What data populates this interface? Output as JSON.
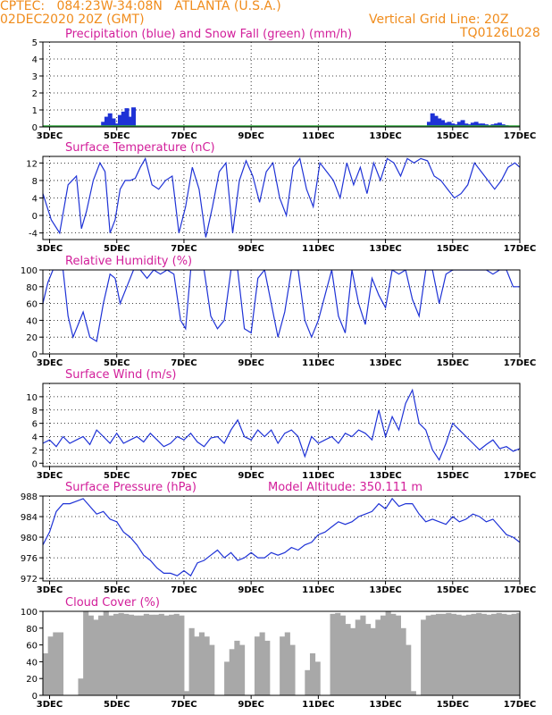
{
  "header": {
    "left_line1": "CPTEC:   084:23W-34:08N   ATLANTA (U.S.A.)",
    "left_line2": "02DEC2020 20Z (GMT)",
    "right_line1": "Vertical Grid Line: 20Z",
    "right_line2": "TQ0126L028"
  },
  "colors": {
    "header": "#f08c1c",
    "title": "#d21e9a",
    "line": "#1e32d6",
    "precip": "#1e32d6",
    "snow": "#2ea83a",
    "cloud": "#a8a8a8"
  },
  "x_axis": {
    "range": [
      2.8,
      17.0
    ],
    "ticks": [
      3,
      5,
      7,
      9,
      11,
      13,
      15,
      17
    ],
    "tick_labels": [
      "3DEC",
      "5DEC",
      "7DEC",
      "9DEC",
      "11DEC",
      "13DEC",
      "15DEC",
      "17DEC"
    ]
  },
  "chart_data": [
    {
      "type": "bar",
      "title": "Precipitation (blue) and Snow Fall (green) (mm/h)",
      "ylim": [
        0,
        5
      ],
      "yticks": [
        0,
        1,
        2,
        3,
        4,
        5
      ],
      "grid": true,
      "series": [
        {
          "name": "Precipitation",
          "type": "bar",
          "x": [
            4.6,
            4.7,
            4.8,
            4.9,
            5.0,
            5.1,
            5.2,
            5.3,
            5.4,
            5.5,
            14.3,
            14.4,
            14.5,
            14.6,
            14.7,
            14.8,
            14.9,
            15.0,
            15.1,
            15.2,
            15.3,
            15.4,
            15.5,
            15.6,
            15.7,
            15.8,
            15.9,
            16.0,
            16.1,
            16.2,
            16.3,
            16.4,
            16.5,
            16.6,
            16.7,
            16.8,
            16.9
          ],
          "y": [
            0.3,
            0.6,
            0.8,
            0.5,
            0.2,
            0.7,
            0.9,
            1.1,
            0.6,
            1.15,
            0.3,
            0.8,
            0.65,
            0.5,
            0.4,
            0.25,
            0.3,
            0.2,
            0.15,
            0.3,
            0.4,
            0.2,
            0.15,
            0.25,
            0.3,
            0.2,
            0.2,
            0.15,
            0.1,
            0.15,
            0.2,
            0.25,
            0.15,
            0.1,
            0.05,
            0.05,
            0.05
          ]
        },
        {
          "name": "Snow Fall",
          "type": "line",
          "x": [
            2.8,
            17.0
          ],
          "y": [
            0,
            0
          ]
        }
      ]
    },
    {
      "type": "line",
      "title": "Surface Temperature (nC)",
      "ylim": [
        -5.5,
        13.5
      ],
      "yticks": [
        -4,
        0,
        4,
        8,
        12
      ],
      "grid": true,
      "x": [
        2.8,
        3.05,
        3.3,
        3.55,
        3.8,
        3.95,
        4.1,
        4.3,
        4.5,
        4.65,
        4.8,
        4.95,
        5.1,
        5.25,
        5.4,
        5.55,
        5.7,
        5.85,
        6.05,
        6.25,
        6.45,
        6.65,
        6.85,
        7.05,
        7.25,
        7.45,
        7.65,
        7.85,
        8.05,
        8.25,
        8.45,
        8.65,
        8.85,
        9.05,
        9.25,
        9.45,
        9.65,
        9.85,
        10.05,
        10.25,
        10.45,
        10.65,
        10.85,
        11.05,
        11.25,
        11.45,
        11.65,
        11.85,
        12.05,
        12.25,
        12.45,
        12.65,
        12.85,
        13.05,
        13.25,
        13.45,
        13.65,
        13.85,
        14.05,
        14.25,
        14.45,
        14.65,
        14.85,
        15.05,
        15.25,
        15.45,
        15.65,
        15.85,
        16.05,
        16.25,
        16.45,
        16.65,
        16.85,
        17.0
      ],
      "y": [
        5,
        -1,
        -4,
        7,
        9,
        -3,
        1,
        8,
        12,
        10,
        -4,
        -1,
        6,
        8,
        8,
        8.5,
        11,
        13,
        7,
        6,
        8,
        9,
        -4,
        2,
        11,
        6,
        -5,
        2,
        10,
        12,
        -4,
        8,
        12.5,
        9,
        3,
        10,
        12,
        4,
        0,
        11,
        13,
        6,
        2,
        12,
        10,
        8,
        4,
        12,
        7,
        11,
        5,
        12,
        8,
        13,
        12,
        9,
        13,
        12,
        13,
        12.5,
        9,
        8,
        6,
        4,
        5,
        7,
        12,
        10,
        8,
        6,
        8,
        11,
        12,
        11
      ]
    },
    {
      "type": "line",
      "title": "Relative Humidity (%)",
      "ylim": [
        0,
        100
      ],
      "yticks": [
        0,
        20,
        40,
        60,
        80,
        100
      ],
      "grid": true,
      "x": [
        2.8,
        2.95,
        3.1,
        3.25,
        3.4,
        3.55,
        3.7,
        3.85,
        4.0,
        4.2,
        4.4,
        4.6,
        4.8,
        4.95,
        5.1,
        5.3,
        5.5,
        5.7,
        5.9,
        6.1,
        6.3,
        6.5,
        6.7,
        6.9,
        7.05,
        7.2,
        7.4,
        7.6,
        7.8,
        8.0,
        8.2,
        8.4,
        8.6,
        8.8,
        9.0,
        9.2,
        9.4,
        9.6,
        9.8,
        10.0,
        10.2,
        10.4,
        10.6,
        10.8,
        11.0,
        11.2,
        11.4,
        11.6,
        11.8,
        12.0,
        12.2,
        12.4,
        12.6,
        12.8,
        13.0,
        13.2,
        13.4,
        13.6,
        13.8,
        14.0,
        14.2,
        14.4,
        14.6,
        14.8,
        15.0,
        15.2,
        15.4,
        15.6,
        15.8,
        16.0,
        16.2,
        16.4,
        16.6,
        16.8,
        17.0
      ],
      "y": [
        60,
        85,
        100,
        100,
        100,
        45,
        20,
        35,
        50,
        20,
        15,
        60,
        95,
        90,
        60,
        80,
        100,
        100,
        90,
        100,
        95,
        100,
        95,
        40,
        30,
        100,
        100,
        100,
        45,
        30,
        40,
        100,
        100,
        30,
        25,
        90,
        100,
        60,
        20,
        50,
        100,
        100,
        40,
        20,
        40,
        70,
        100,
        45,
        25,
        100,
        60,
        35,
        90,
        70,
        55,
        100,
        95,
        100,
        65,
        45,
        100,
        100,
        60,
        95,
        100,
        100,
        100,
        100,
        100,
        100,
        95,
        100,
        100,
        80,
        80
      ]
    },
    {
      "type": "line",
      "title": "Surface Wind (m/s)",
      "ylim": [
        -0.5,
        12
      ],
      "yticks": [
        0,
        2,
        4,
        6,
        8,
        10
      ],
      "grid": true,
      "x": [
        2.8,
        3.0,
        3.2,
        3.4,
        3.6,
        3.8,
        4.0,
        4.2,
        4.4,
        4.6,
        4.8,
        5.0,
        5.2,
        5.4,
        5.6,
        5.8,
        6.0,
        6.2,
        6.4,
        6.6,
        6.8,
        7.0,
        7.2,
        7.4,
        7.6,
        7.8,
        8.0,
        8.2,
        8.4,
        8.6,
        8.8,
        9.0,
        9.2,
        9.4,
        9.6,
        9.8,
        10.0,
        10.2,
        10.4,
        10.6,
        10.8,
        11.0,
        11.2,
        11.4,
        11.6,
        11.8,
        12.0,
        12.2,
        12.4,
        12.6,
        12.8,
        13.0,
        13.2,
        13.4,
        13.6,
        13.8,
        14.0,
        14.2,
        14.4,
        14.6,
        14.8,
        15.0,
        15.2,
        15.4,
        15.6,
        15.8,
        16.0,
        16.2,
        16.4,
        16.6,
        16.8,
        17.0
      ],
      "y": [
        3,
        3.5,
        2.5,
        4,
        3,
        3.5,
        4,
        2.8,
        5,
        4,
        3,
        4.5,
        3,
        3.5,
        4,
        3.2,
        4.5,
        3.5,
        2.5,
        3,
        4,
        3.5,
        4.5,
        3.2,
        2.5,
        3.8,
        4,
        3,
        5,
        6.5,
        4,
        3.5,
        5,
        4,
        5,
        3,
        4.5,
        5,
        4,
        1,
        4,
        3,
        3.5,
        4,
        3,
        4.5,
        4,
        5,
        4.5,
        3.5,
        8,
        4,
        7,
        5,
        9,
        11,
        6,
        5,
        2,
        0.5,
        3,
        6,
        5,
        4,
        3,
        2,
        2.8,
        3.5,
        2.2,
        2.5,
        1.8,
        2.2
      ]
    },
    {
      "type": "line",
      "title": "Surface Pressure (hPa)",
      "subtitle": "Model Altitude: 350.111 m",
      "ylim": [
        971.5,
        988
      ],
      "yticks": [
        972,
        976,
        980,
        984,
        988
      ],
      "grid": true,
      "x": [
        2.8,
        3.0,
        3.2,
        3.4,
        3.6,
        3.8,
        4.0,
        4.2,
        4.4,
        4.6,
        4.8,
        5.0,
        5.2,
        5.4,
        5.6,
        5.8,
        6.0,
        6.2,
        6.4,
        6.6,
        6.8,
        7.0,
        7.2,
        7.4,
        7.6,
        7.8,
        8.0,
        8.2,
        8.4,
        8.6,
        8.8,
        9.0,
        9.2,
        9.4,
        9.6,
        9.8,
        10.0,
        10.2,
        10.4,
        10.6,
        10.8,
        11.0,
        11.2,
        11.4,
        11.6,
        11.8,
        12.0,
        12.2,
        12.4,
        12.6,
        12.8,
        13.0,
        13.2,
        13.4,
        13.6,
        13.8,
        14.0,
        14.2,
        14.4,
        14.6,
        14.8,
        15.0,
        15.2,
        15.4,
        15.6,
        15.8,
        16.0,
        16.2,
        16.4,
        16.6,
        16.8,
        17.0
      ],
      "y": [
        978.5,
        981,
        985,
        986.5,
        986.5,
        987,
        987.5,
        986,
        984.5,
        985,
        983.5,
        983,
        981,
        980,
        978.5,
        976.5,
        975.5,
        974,
        973,
        973,
        972.5,
        973.5,
        972.5,
        975,
        975.5,
        976.5,
        977.5,
        976,
        977,
        975.5,
        976,
        977,
        976,
        976,
        977,
        976.5,
        977,
        978,
        977.5,
        978.5,
        979,
        980.5,
        981,
        982,
        983,
        982.5,
        983,
        984,
        984.5,
        985,
        986.5,
        985.5,
        987.5,
        986,
        986.5,
        986.5,
        984.5,
        983,
        983.5,
        983,
        982.5,
        984,
        983,
        983.5,
        984.5,
        984,
        983,
        983.5,
        982,
        980.5,
        980,
        979
      ]
    },
    {
      "type": "bar",
      "title": "Cloud Cover (%)",
      "ylim": [
        0,
        100
      ],
      "yticks": [
        0,
        20,
        40,
        60,
        80,
        100
      ],
      "grid": false,
      "x": [
        2.8,
        2.95,
        3.1,
        3.25,
        3.4,
        3.55,
        3.7,
        3.85,
        4.0,
        4.15,
        4.3,
        4.45,
        4.6,
        4.75,
        4.9,
        5.05,
        5.2,
        5.35,
        5.5,
        5.65,
        5.8,
        5.95,
        6.1,
        6.25,
        6.4,
        6.55,
        6.7,
        6.85,
        7.0,
        7.15,
        7.3,
        7.45,
        7.6,
        7.75,
        7.9,
        8.05,
        8.2,
        8.35,
        8.5,
        8.65,
        8.8,
        8.95,
        9.1,
        9.25,
        9.4,
        9.55,
        9.7,
        9.85,
        10.0,
        10.15,
        10.3,
        10.45,
        10.6,
        10.75,
        10.9,
        11.05,
        11.2,
        11.35,
        11.5,
        11.65,
        11.8,
        11.95,
        12.1,
        12.25,
        12.4,
        12.55,
        12.7,
        12.85,
        13.0,
        13.15,
        13.3,
        13.45,
        13.6,
        13.75,
        13.9,
        14.05,
        14.2,
        14.35,
        14.5,
        14.65,
        14.8,
        14.95,
        15.1,
        15.25,
        15.4,
        15.55,
        15.7,
        15.85,
        16.0,
        16.15,
        16.3,
        16.45,
        16.6,
        16.75,
        16.9
      ],
      "values": [
        50,
        70,
        75,
        75,
        0,
        0,
        0,
        20,
        100,
        95,
        90,
        95,
        100,
        95,
        97,
        98,
        97,
        96,
        95,
        95,
        97,
        96,
        96,
        97,
        95,
        96,
        97,
        95,
        5,
        80,
        70,
        75,
        70,
        60,
        0,
        0,
        40,
        55,
        65,
        60,
        0,
        0,
        70,
        75,
        65,
        0,
        0,
        70,
        75,
        60,
        0,
        0,
        30,
        50,
        40,
        0,
        0,
        97,
        98,
        95,
        85,
        80,
        90,
        95,
        85,
        80,
        90,
        95,
        100,
        97,
        95,
        80,
        60,
        5,
        0,
        90,
        95,
        96,
        97,
        97,
        98,
        97,
        96,
        95,
        96,
        97,
        98,
        97,
        96,
        97,
        98,
        97,
        96,
        97,
        98
      ]
    }
  ]
}
